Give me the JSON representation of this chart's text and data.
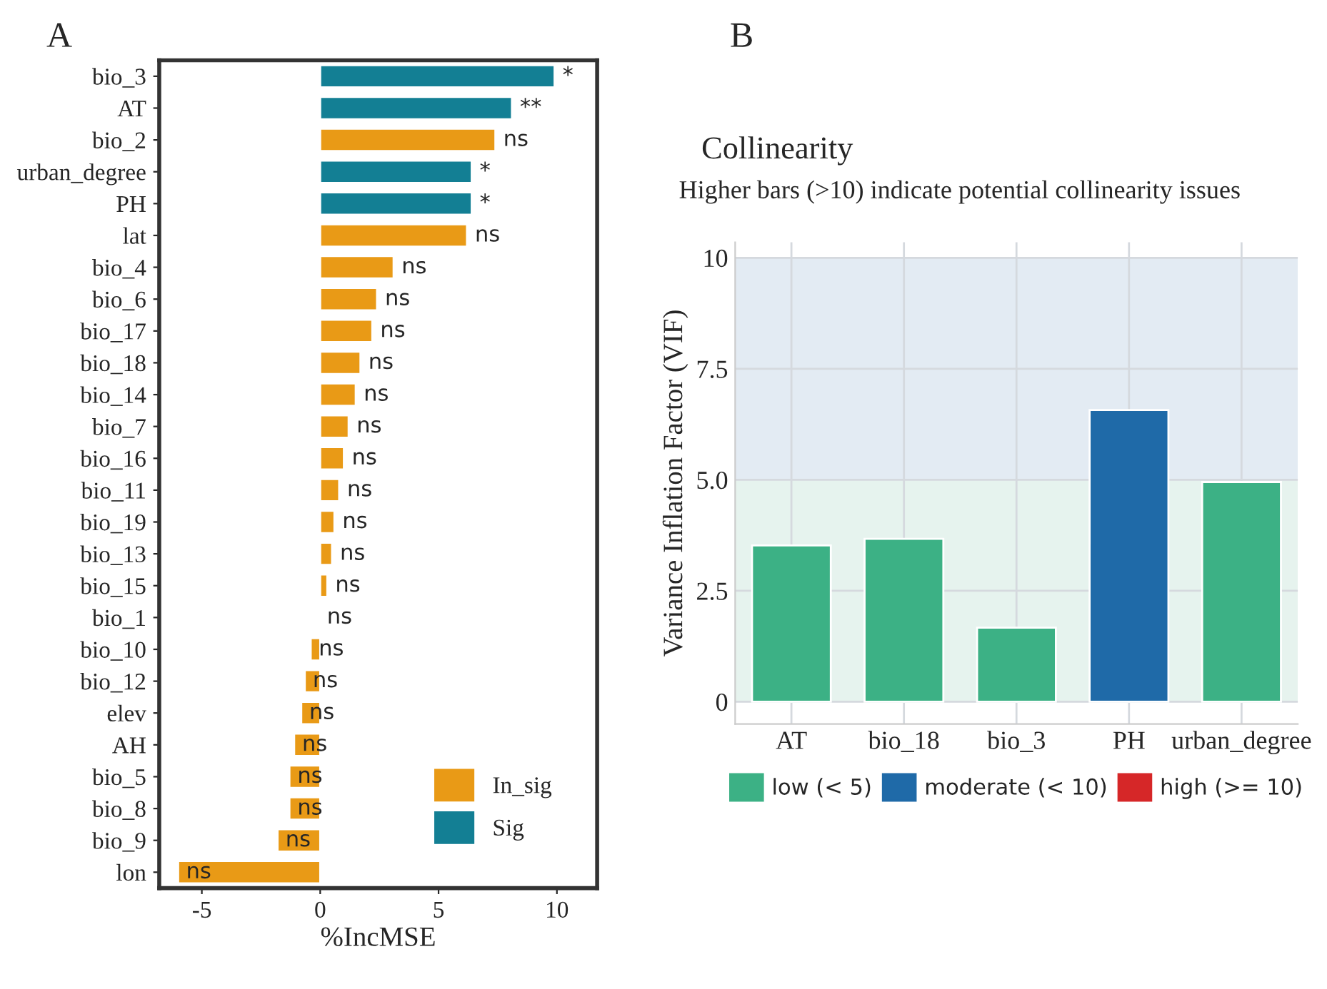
{
  "chart_data": [
    {
      "type": "bar",
      "orientation": "horizontal",
      "xlabel": "%IncMSE",
      "categories": [
        "bio_3",
        "AT",
        "bio_2",
        "urban_degree",
        "PH",
        "lat",
        "bio_4",
        "bio_6",
        "bio_17",
        "bio_18",
        "bio_14",
        "bio_7",
        "bio_16",
        "bio_11",
        "bio_19",
        "bio_13",
        "bio_15",
        "bio_1",
        "bio_10",
        "bio_12",
        "elev",
        "AH",
        "bio_5",
        "bio_8",
        "bio_9",
        "lon"
      ],
      "series": [
        {
          "name": "In_sig",
          "color": "#e99a16",
          "values": [
            null,
            null,
            7.4,
            null,
            null,
            6.2,
            3.1,
            2.4,
            2.2,
            1.7,
            1.5,
            1.2,
            1.0,
            0.8,
            0.6,
            0.5,
            0.3,
            -0.05,
            -0.4,
            -0.65,
            -0.8,
            -1.1,
            -1.3,
            -1.3,
            -1.8,
            -6.0
          ],
          "value_labels": [
            null,
            null,
            "ns",
            null,
            null,
            "ns",
            "ns",
            "ns",
            "ns",
            "ns",
            "ns",
            "ns",
            "ns",
            "ns",
            "ns",
            "ns",
            "ns",
            "ns",
            "ns",
            "ns",
            "ns",
            "ns",
            "ns",
            "ns",
            "ns",
            "ns"
          ]
        },
        {
          "name": "Sig",
          "color": "#137f94",
          "values": [
            9.9,
            8.1,
            null,
            6.4,
            6.4,
            null,
            null,
            null,
            null,
            null,
            null,
            null,
            null,
            null,
            null,
            null,
            null,
            null,
            null,
            null,
            null,
            null,
            null,
            null,
            null,
            null
          ],
          "value_labels": [
            "*",
            "**",
            null,
            "*",
            "*",
            null,
            null,
            null,
            null,
            null,
            null,
            null,
            null,
            null,
            null,
            null,
            null,
            null,
            null,
            null,
            null,
            null,
            null,
            null,
            null,
            null
          ]
        }
      ],
      "xlim": [
        -6.8,
        11.7
      ],
      "xticks": [
        -5,
        0,
        5,
        10
      ],
      "legend": "bottom right",
      "grid": false,
      "annotations": [
        "A"
      ]
    },
    {
      "type": "bar",
      "title": "Collinearity",
      "subtitle": "Higher bars (>10) indicate potential collinearity issues",
      "ylabel": "Variance Inflation Factor (VIF)",
      "categories": [
        "AT",
        "bio_18",
        "bio_3",
        "PH",
        "urban_degree"
      ],
      "series": [
        {
          "name": "low (< 5)",
          "color": "#3cb185",
          "values": [
            3.52,
            3.67,
            1.67,
            null,
            4.95
          ]
        },
        {
          "name": "moderate (< 10)",
          "color": "#1f6aa8",
          "values": [
            null,
            null,
            null,
            6.57,
            null
          ]
        },
        {
          "name": "high (>= 10)",
          "color": "#d62728",
          "values": [
            null,
            null,
            null,
            null,
            null
          ]
        }
      ],
      "ylim": [
        -0.5,
        10.35
      ],
      "yticks": [
        0,
        {
          "value": 2.5,
          "label": "2.5"
        },
        {
          "value": 5,
          "label": "5.0"
        },
        {
          "value": 7.5,
          "label": "7.5"
        },
        10
      ],
      "bands": [
        {
          "axis": "y",
          "from": 0,
          "to": 5,
          "color": "#e6f3ee"
        },
        {
          "axis": "y",
          "from": 5,
          "to": 10,
          "color": "#e3ebf3"
        }
      ],
      "grid": true,
      "legend": "bottom",
      "annotations": [
        "B"
      ]
    }
  ]
}
